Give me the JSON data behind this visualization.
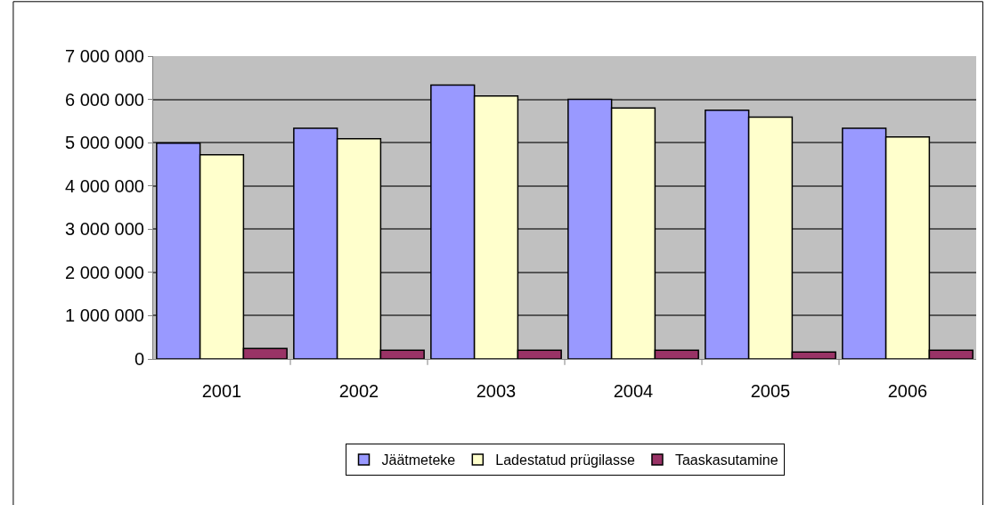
{
  "chart_data": {
    "type": "bar",
    "categories": [
      "2001",
      "2002",
      "2003",
      "2004",
      "2005",
      "2006"
    ],
    "series": [
      {
        "name": "Jäätmeteke",
        "color": "#9999ff",
        "values": [
          4990000,
          5330000,
          6330000,
          6000000,
          5750000,
          5330000
        ]
      },
      {
        "name": "Ladestatud prügilasse",
        "color": "#ffffcc",
        "values": [
          4720000,
          5090000,
          6080000,
          5800000,
          5590000,
          5130000
        ]
      },
      {
        "name": "Taaskasutamine",
        "color": "#993366",
        "values": [
          240000,
          200000,
          200000,
          200000,
          160000,
          200000
        ]
      }
    ],
    "ylim": [
      0,
      7000000
    ],
    "yticks": [
      {
        "value": 0,
        "label": "0"
      },
      {
        "value": 1000000,
        "label": "1 000 000"
      },
      {
        "value": 2000000,
        "label": "2 000 000"
      },
      {
        "value": 3000000,
        "label": "3 000 000"
      },
      {
        "value": 4000000,
        "label": "4 000 000"
      },
      {
        "value": 5000000,
        "label": "5 000 000"
      },
      {
        "value": 6000000,
        "label": "6 000 000"
      },
      {
        "value": 7000000,
        "label": "7 000 000"
      }
    ],
    "grid": "y",
    "legend": "bottom"
  }
}
